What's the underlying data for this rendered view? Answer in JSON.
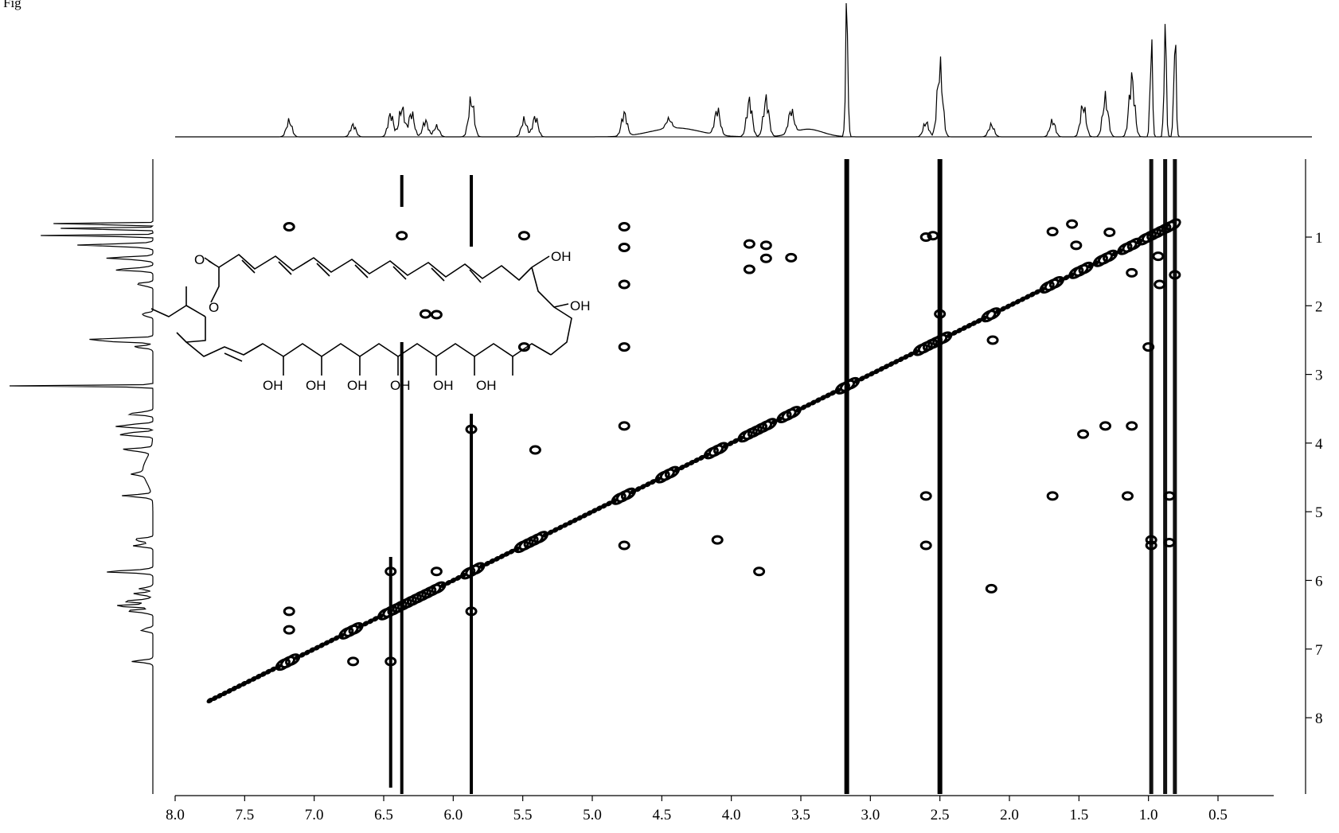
{
  "caption": "Fig",
  "chart_data": {
    "type": "heatmap",
    "subtype": "2D NMR COSY contour plot with 1D projections",
    "title": "",
    "xlabel": "",
    "ylabel": "",
    "xlim": [
      8.0,
      0.0
    ],
    "ylim": [
      0.7,
      8.0
    ],
    "x_ticks": [
      "8.0",
      "7.5",
      "7.0",
      "6.5",
      "6.0",
      "5.5",
      "5.0",
      "4.5",
      "4.0",
      "3.5",
      "3.0",
      "2.5",
      "2.0",
      "1.5",
      "1.0",
      "0.5"
    ],
    "x_tick_values": [
      8.0,
      7.5,
      7.0,
      6.5,
      6.0,
      5.5,
      5.0,
      4.5,
      4.0,
      3.5,
      3.0,
      2.5,
      2.0,
      1.5,
      1.0,
      0.5
    ],
    "y_ticks": [
      "1",
      "2",
      "3",
      "4",
      "5",
      "6",
      "7",
      "8"
    ],
    "y_tick_values": [
      1,
      2,
      3,
      4,
      5,
      6,
      7,
      8
    ],
    "solvent_stripes_ppm": [
      3.17,
      2.5
    ],
    "projection_peaks": [
      {
        "ppm": 7.18,
        "h": 0.12
      },
      {
        "ppm": 6.72,
        "h": 0.09
      },
      {
        "ppm": 6.45,
        "h": 0.17
      },
      {
        "ppm": 6.37,
        "h": 0.22
      },
      {
        "ppm": 6.3,
        "h": 0.18
      },
      {
        "ppm": 6.2,
        "h": 0.12
      },
      {
        "ppm": 6.12,
        "h": 0.08
      },
      {
        "ppm": 5.87,
        "h": 0.28
      },
      {
        "ppm": 5.49,
        "h": 0.13
      },
      {
        "ppm": 5.41,
        "h": 0.15
      },
      {
        "ppm": 4.77,
        "h": 0.17
      },
      {
        "ppm": 4.45,
        "h": 0.07
      },
      {
        "ppm": 4.1,
        "h": 0.19
      },
      {
        "ppm": 3.87,
        "h": 0.27
      },
      {
        "ppm": 3.75,
        "h": 0.28
      },
      {
        "ppm": 3.57,
        "h": 0.17
      },
      {
        "ppm": 3.17,
        "h": 1.0
      },
      {
        "ppm": 2.6,
        "h": 0.11
      },
      {
        "ppm": 2.5,
        "h": 0.52
      },
      {
        "ppm": 2.13,
        "h": 0.09
      },
      {
        "ppm": 1.69,
        "h": 0.12
      },
      {
        "ppm": 1.47,
        "h": 0.24
      },
      {
        "ppm": 1.31,
        "h": 0.29
      },
      {
        "ppm": 1.12,
        "h": 0.44
      },
      {
        "ppm": 0.98,
        "h": 0.75
      },
      {
        "ppm": 0.88,
        "h": 0.82
      },
      {
        "ppm": 0.81,
        "h": 0.78
      }
    ],
    "diagonal_ppm_range": [
      7.75,
      0.8
    ],
    "cross_peaks": [
      {
        "x": 0.93,
        "y": 1.28
      },
      {
        "x": 1.28,
        "y": 0.93
      },
      {
        "x": 0.81,
        "y": 1.55
      },
      {
        "x": 1.55,
        "y": 0.81
      },
      {
        "x": 1.12,
        "y": 1.52
      },
      {
        "x": 1.52,
        "y": 1.12
      },
      {
        "x": 1.47,
        "y": 3.87
      },
      {
        "x": 3.87,
        "y": 1.47
      },
      {
        "x": 1.12,
        "y": 3.75
      },
      {
        "x": 3.75,
        "y": 1.12
      },
      {
        "x": 1.31,
        "y": 3.75
      },
      {
        "x": 3.75,
        "y": 1.31
      },
      {
        "x": 2.6,
        "y": 1.0
      },
      {
        "x": 1.0,
        "y": 2.6
      },
      {
        "x": 2.5,
        "y": 2.12
      },
      {
        "x": 2.12,
        "y": 2.5
      },
      {
        "x": 4.77,
        "y": 0.85
      },
      {
        "x": 0.85,
        "y": 4.77
      },
      {
        "x": 4.77,
        "y": 2.6
      },
      {
        "x": 2.6,
        "y": 4.77
      },
      {
        "x": 4.77,
        "y": 1.15
      },
      {
        "x": 1.15,
        "y": 4.77
      },
      {
        "x": 3.87,
        "y": 1.1
      },
      {
        "x": 3.57,
        "y": 1.3
      },
      {
        "x": 5.87,
        "y": 6.45
      },
      {
        "x": 6.45,
        "y": 5.87
      },
      {
        "x": 6.37,
        "y": 0.98
      },
      {
        "x": 7.18,
        "y": 6.72
      },
      {
        "x": 6.72,
        "y": 7.18
      },
      {
        "x": 7.18,
        "y": 6.45
      },
      {
        "x": 6.45,
        "y": 7.18
      },
      {
        "x": 5.49,
        "y": 0.98
      },
      {
        "x": 0.98,
        "y": 5.49
      },
      {
        "x": 4.1,
        "y": 5.41
      },
      {
        "x": 5.41,
        "y": 4.1
      },
      {
        "x": 3.8,
        "y": 5.87
      },
      {
        "x": 5.87,
        "y": 3.8
      },
      {
        "x": 2.13,
        "y": 6.12
      },
      {
        "x": 6.12,
        "y": 2.13
      },
      {
        "x": 1.69,
        "y": 4.77
      },
      {
        "x": 1.69,
        "y": 0.92
      },
      {
        "x": 0.92,
        "y": 1.69
      },
      {
        "x": 6.2,
        "y": 2.12
      },
      {
        "x": 5.49,
        "y": 2.6
      },
      {
        "x": 2.6,
        "y": 5.49
      },
      {
        "x": 6.12,
        "y": 5.87
      },
      {
        "x": 4.77,
        "y": 1.69
      },
      {
        "x": 7.18,
        "y": 0.85
      },
      {
        "x": 2.55,
        "y": 0.98
      },
      {
        "x": 4.77,
        "y": 5.49
      },
      {
        "x": 4.77,
        "y": 3.75
      },
      {
        "x": 0.98,
        "y": 5.41
      },
      {
        "x": 0.85,
        "y": 5.45
      }
    ],
    "structure_labels": {
      "o_carbonyl": "O",
      "o_ring": "O",
      "oh": "OH"
    }
  }
}
